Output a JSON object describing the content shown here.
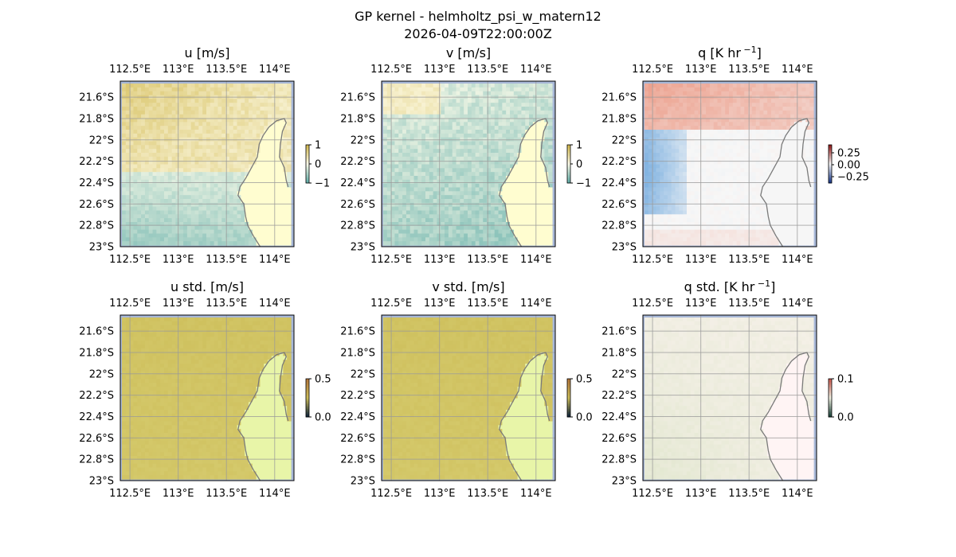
{
  "figure": {
    "title_line1": "GP kernel - helmholtz_psi_w_matern12",
    "title_line2": "2026-04-09T22:00:00Z"
  },
  "axes": {
    "lon_ticks": [
      "112.5°E",
      "113°E",
      "113.5°E",
      "114°E"
    ],
    "lat_ticks": [
      "21.6°S",
      "21.8°S",
      "22°S",
      "22.2°S",
      "22.4°S",
      "22.6°S",
      "22.8°S",
      "23°S"
    ]
  },
  "chart_data": [
    {
      "type": "heatmap",
      "id": "u",
      "title": "u [m/s]",
      "colormap": "diverging teal-white-gold",
      "colorbar": {
        "ticks": [
          "1",
          "0",
          "−1"
        ],
        "range": [
          -1,
          1
        ]
      },
      "lon_range": [
        112.4,
        114.2
      ],
      "lat_range": [
        -23.0,
        -21.45
      ],
      "grid": true,
      "coastline": true
    },
    {
      "type": "heatmap",
      "id": "v",
      "title": "v [m/s]",
      "colormap": "diverging teal-white-gold",
      "colorbar": {
        "ticks": [
          "1",
          "0",
          "−1"
        ],
        "range": [
          -1,
          1
        ]
      },
      "lon_range": [
        112.4,
        114.2
      ],
      "lat_range": [
        -23.0,
        -21.45
      ],
      "grid": true,
      "coastline": true
    },
    {
      "type": "heatmap",
      "id": "q",
      "title": "q [K hr",
      "title_sup": "−1",
      "title_end": "]",
      "colormap": "diverging blue-white-red",
      "colorbar": {
        "ticks": [
          "0.25",
          "0.00",
          "−0.25"
        ],
        "range": [
          -0.35,
          0.35
        ]
      },
      "lon_range": [
        112.4,
        114.2
      ],
      "lat_range": [
        -23.0,
        -21.45
      ],
      "grid": true,
      "coastline": true
    },
    {
      "type": "heatmap",
      "id": "u_std",
      "title": "u std. [m/s]",
      "colormap": "sequential olive",
      "colorbar": {
        "ticks": [
          "0.5",
          "0.0"
        ],
        "range": [
          0,
          0.5
        ]
      },
      "lon_range": [
        112.4,
        114.2
      ],
      "lat_range": [
        -23.0,
        -21.45
      ],
      "grid": true,
      "coastline": true
    },
    {
      "type": "heatmap",
      "id": "v_std",
      "title": "v std. [m/s]",
      "colormap": "sequential olive",
      "colorbar": {
        "ticks": [
          "0.5",
          "0.0"
        ],
        "range": [
          0,
          0.5
        ]
      },
      "lon_range": [
        112.4,
        114.2
      ],
      "lat_range": [
        -23.0,
        -21.45
      ],
      "grid": true,
      "coastline": true
    },
    {
      "type": "heatmap",
      "id": "q_std",
      "title": "q std. [K hr",
      "title_sup": "−1",
      "title_end": "]",
      "colormap": "sequential",
      "colorbar": {
        "ticks": [
          "0.1",
          "0.0"
        ],
        "range": [
          0,
          0.1
        ]
      },
      "lon_range": [
        112.4,
        114.2
      ],
      "lat_range": [
        -23.0,
        -21.45
      ],
      "grid": true,
      "coastline": true
    }
  ]
}
